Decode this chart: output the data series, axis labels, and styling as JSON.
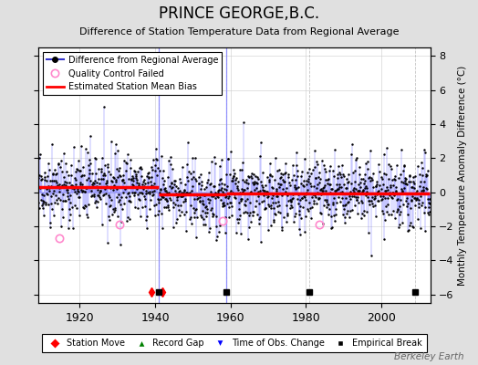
{
  "title": "PRINCE GEORGE,B.C.",
  "subtitle": "Difference of Station Temperature Data from Regional Average",
  "ylabel": "Monthly Temperature Anomaly Difference (°C)",
  "xlabel_ticks": [
    1920,
    1940,
    1960,
    1980,
    2000
  ],
  "ylim": [
    -6.5,
    8.5
  ],
  "xlim": [
    1909,
    2013
  ],
  "yticks": [
    -6,
    -4,
    -2,
    0,
    2,
    4,
    6,
    8
  ],
  "background_color": "#e0e0e0",
  "plot_bg_color": "#ffffff",
  "line_color": "#3333cc",
  "stem_color": "#6666ff",
  "bias_color": "#ff0000",
  "qc_color": "#ff88cc",
  "seed": 42,
  "station_move_years": [
    1939,
    1942
  ],
  "time_obs_change_years": [
    1941,
    1959
  ],
  "empirical_break_years": [
    1941,
    1959,
    1981,
    2009
  ],
  "segment_biases": [
    {
      "start": 1909,
      "end": 1941,
      "bias": 0.28
    },
    {
      "start": 1941,
      "end": 1959,
      "bias": -0.12
    },
    {
      "start": 1959,
      "end": 2013,
      "bias": -0.08
    }
  ],
  "qc_failed_approx": [
    {
      "year": 1914.5,
      "val": -2.7
    },
    {
      "year": 1930.5,
      "val": -1.9
    },
    {
      "year": 1958.0,
      "val": -1.7
    },
    {
      "year": 1983.5,
      "val": -1.9
    }
  ],
  "watermark": "Berkeley Earth",
  "watermark_color": "#666666"
}
